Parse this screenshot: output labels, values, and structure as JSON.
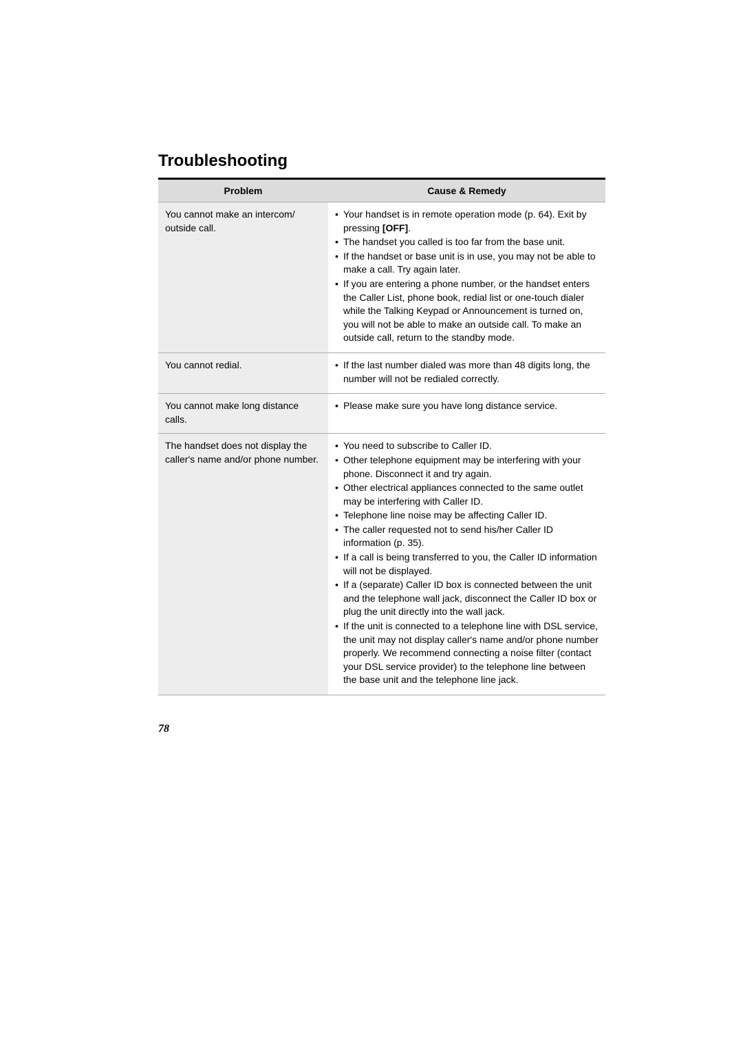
{
  "page": {
    "title": "Troubleshooting",
    "pageNumber": "78"
  },
  "table": {
    "headers": {
      "problem": "Problem",
      "remedy": "Cause & Remedy"
    },
    "rows": [
      {
        "problem": "You cannot make an intercom/ outside call.",
        "remedies": [
          "Your handset is in remote operation mode (p. 64). Exit by pressing [OFF].",
          "The handset you called is too far from the base unit.",
          "If the handset or base unit is in use, you may not be able to make a call. Try again later.",
          "If you are entering a phone number, or the handset enters the Caller List, phone book, redial list or one-touch dialer while the Talking Keypad or Announcement is turned on, you will not be able to make an outside call. To make an outside call, return to the standby mode."
        ]
      },
      {
        "problem": "You cannot redial.",
        "remedies": [
          "If the last number dialed was more than 48 digits long, the number will not be redialed correctly."
        ]
      },
      {
        "problem": "You cannot make long distance calls.",
        "remedies": [
          "Please make sure you have long distance service."
        ]
      },
      {
        "problem": "The handset does not display the caller's name and/or phone number.",
        "remedies": [
          "You need to subscribe to Caller ID.",
          "Other telephone equipment may be interfering with your phone. Disconnect it and try again.",
          "Other electrical appliances connected to the same outlet may be interfering with Caller ID.",
          "Telephone line noise may be affecting Caller ID.",
          "The caller requested not to send his/her Caller ID information (p. 35).",
          "If a call is being transferred to you, the Caller ID information will not be displayed.",
          "If a (separate) Caller ID box is connected between the unit and the telephone wall jack, disconnect the Caller ID box or plug the unit directly into the wall jack.",
          "If the unit is connected to a telephone line with DSL service, the unit may not display caller's name and/or phone number properly. We recommend connecting a noise filter (contact your DSL service provider) to the telephone line between the base unit and the telephone line jack."
        ]
      }
    ]
  }
}
